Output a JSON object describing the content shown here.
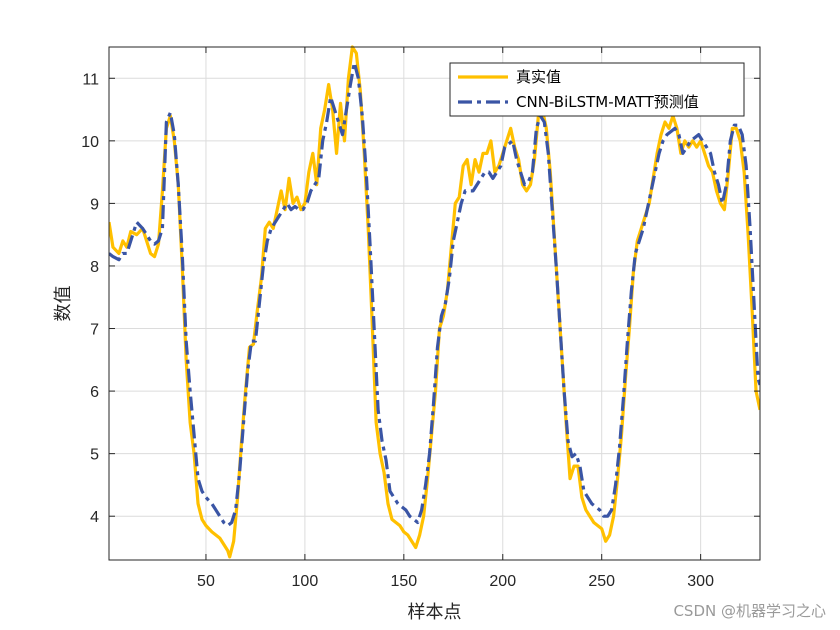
{
  "chart_data": {
    "type": "line",
    "title": "",
    "xlabel": "样本点",
    "ylabel": "数值",
    "xlim": [
      1,
      330
    ],
    "ylim": [
      3.3,
      11.5
    ],
    "xticks": [
      50,
      100,
      150,
      200,
      250,
      300
    ],
    "yticks": [
      4,
      5,
      6,
      7,
      8,
      9,
      10,
      11
    ],
    "grid": true,
    "legend_position": "top-right",
    "series": [
      {
        "name": "真实值",
        "color": "#FFC000",
        "style": "solid",
        "points": [
          [
            1,
            8.7
          ],
          [
            3,
            8.3
          ],
          [
            6,
            8.2
          ],
          [
            8,
            8.4
          ],
          [
            10,
            8.3
          ],
          [
            12,
            8.55
          ],
          [
            15,
            8.5
          ],
          [
            18,
            8.6
          ],
          [
            20,
            8.4
          ],
          [
            22,
            8.2
          ],
          [
            24,
            8.15
          ],
          [
            26,
            8.35
          ],
          [
            28,
            9.2
          ],
          [
            30,
            10.2
          ],
          [
            32,
            10.4
          ],
          [
            34,
            10.0
          ],
          [
            36,
            9.3
          ],
          [
            38,
            8.0
          ],
          [
            40,
            6.5
          ],
          [
            42,
            5.5
          ],
          [
            44,
            5.0
          ],
          [
            46,
            4.2
          ],
          [
            48,
            3.95
          ],
          [
            50,
            3.85
          ],
          [
            53,
            3.75
          ],
          [
            55,
            3.7
          ],
          [
            57,
            3.65
          ],
          [
            59,
            3.55
          ],
          [
            61,
            3.45
          ],
          [
            62,
            3.35
          ],
          [
            64,
            3.6
          ],
          [
            66,
            4.3
          ],
          [
            68,
            5.2
          ],
          [
            70,
            6.0
          ],
          [
            72,
            6.7
          ],
          [
            74,
            6.75
          ],
          [
            76,
            7.3
          ],
          [
            78,
            7.8
          ],
          [
            80,
            8.6
          ],
          [
            82,
            8.7
          ],
          [
            84,
            8.6
          ],
          [
            86,
            8.9
          ],
          [
            88,
            9.2
          ],
          [
            90,
            8.9
          ],
          [
            92,
            9.4
          ],
          [
            94,
            9.0
          ],
          [
            96,
            9.1
          ],
          [
            98,
            8.9
          ],
          [
            100,
            9.0
          ],
          [
            102,
            9.5
          ],
          [
            104,
            9.8
          ],
          [
            106,
            9.3
          ],
          [
            108,
            10.2
          ],
          [
            110,
            10.5
          ],
          [
            112,
            10.9
          ],
          [
            114,
            10.5
          ],
          [
            116,
            9.8
          ],
          [
            118,
            10.6
          ],
          [
            120,
            10.0
          ],
          [
            122,
            11.0
          ],
          [
            124,
            11.5
          ],
          [
            126,
            11.4
          ],
          [
            128,
            10.8
          ],
          [
            130,
            9.8
          ],
          [
            132,
            8.6
          ],
          [
            134,
            7.1
          ],
          [
            136,
            5.5
          ],
          [
            138,
            5.0
          ],
          [
            140,
            4.7
          ],
          [
            142,
            4.2
          ],
          [
            144,
            3.95
          ],
          [
            146,
            3.9
          ],
          [
            148,
            3.85
          ],
          [
            150,
            3.75
          ],
          [
            152,
            3.7
          ],
          [
            154,
            3.6
          ],
          [
            156,
            3.5
          ],
          [
            158,
            3.7
          ],
          [
            160,
            4.0
          ],
          [
            162,
            4.6
          ],
          [
            164,
            5.3
          ],
          [
            166,
            6.0
          ],
          [
            168,
            7.0
          ],
          [
            170,
            7.2
          ],
          [
            172,
            7.6
          ],
          [
            174,
            8.3
          ],
          [
            176,
            9.0
          ],
          [
            178,
            9.1
          ],
          [
            180,
            9.6
          ],
          [
            182,
            9.7
          ],
          [
            184,
            9.3
          ],
          [
            186,
            9.7
          ],
          [
            188,
            9.5
          ],
          [
            190,
            9.8
          ],
          [
            192,
            9.8
          ],
          [
            194,
            10.0
          ],
          [
            196,
            9.5
          ],
          [
            198,
            9.6
          ],
          [
            200,
            9.8
          ],
          [
            202,
            10.0
          ],
          [
            204,
            10.2
          ],
          [
            206,
            9.9
          ],
          [
            208,
            9.7
          ],
          [
            210,
            9.3
          ],
          [
            212,
            9.2
          ],
          [
            214,
            9.3
          ],
          [
            216,
            9.7
          ],
          [
            218,
            10.4
          ],
          [
            220,
            10.5
          ],
          [
            222,
            10.2
          ],
          [
            224,
            9.5
          ],
          [
            226,
            8.5
          ],
          [
            228,
            7.5
          ],
          [
            230,
            6.5
          ],
          [
            232,
            5.5
          ],
          [
            234,
            4.6
          ],
          [
            236,
            4.8
          ],
          [
            238,
            4.8
          ],
          [
            240,
            4.3
          ],
          [
            242,
            4.1
          ],
          [
            244,
            4.0
          ],
          [
            246,
            3.9
          ],
          [
            248,
            3.85
          ],
          [
            250,
            3.8
          ],
          [
            252,
            3.6
          ],
          [
            254,
            3.7
          ],
          [
            256,
            4.0
          ],
          [
            258,
            4.6
          ],
          [
            260,
            5.3
          ],
          [
            262,
            6.2
          ],
          [
            264,
            7.0
          ],
          [
            266,
            7.9
          ],
          [
            268,
            8.4
          ],
          [
            270,
            8.6
          ],
          [
            272,
            8.8
          ],
          [
            274,
            9.0
          ],
          [
            276,
            9.4
          ],
          [
            278,
            9.8
          ],
          [
            280,
            10.1
          ],
          [
            282,
            10.3
          ],
          [
            284,
            10.2
          ],
          [
            286,
            10.4
          ],
          [
            288,
            10.2
          ],
          [
            290,
            9.8
          ],
          [
            292,
            10.0
          ],
          [
            294,
            9.9
          ],
          [
            296,
            10.0
          ],
          [
            298,
            9.9
          ],
          [
            300,
            10.0
          ],
          [
            302,
            9.8
          ],
          [
            304,
            9.6
          ],
          [
            306,
            9.5
          ],
          [
            308,
            9.2
          ],
          [
            310,
            9.0
          ],
          [
            312,
            8.9
          ],
          [
            314,
            9.5
          ],
          [
            316,
            10.2
          ],
          [
            318,
            10.2
          ],
          [
            320,
            10.0
          ],
          [
            322,
            9.5
          ],
          [
            324,
            8.5
          ],
          [
            326,
            7.3
          ],
          [
            328,
            6.0
          ],
          [
            330,
            5.7
          ]
        ]
      },
      {
        "name": "CNN-BiLSTM-MATT预测值",
        "color": "#3A55A5",
        "style": "dashdot",
        "points": [
          [
            1,
            8.2
          ],
          [
            3,
            8.15
          ],
          [
            6,
            8.1
          ],
          [
            8,
            8.2
          ],
          [
            10,
            8.2
          ],
          [
            12,
            8.4
          ],
          [
            15,
            8.7
          ],
          [
            18,
            8.6
          ],
          [
            20,
            8.5
          ],
          [
            22,
            8.4
          ],
          [
            24,
            8.35
          ],
          [
            26,
            8.4
          ],
          [
            28,
            8.6
          ],
          [
            30,
            10.3
          ],
          [
            32,
            10.45
          ],
          [
            34,
            10.1
          ],
          [
            36,
            9.3
          ],
          [
            38,
            8.2
          ],
          [
            40,
            6.8
          ],
          [
            42,
            6.0
          ],
          [
            44,
            5.3
          ],
          [
            46,
            4.6
          ],
          [
            48,
            4.4
          ],
          [
            50,
            4.3
          ],
          [
            53,
            4.2
          ],
          [
            55,
            4.1
          ],
          [
            57,
            4.0
          ],
          [
            59,
            3.9
          ],
          [
            61,
            3.85
          ],
          [
            63,
            3.9
          ],
          [
            65,
            4.1
          ],
          [
            67,
            4.7
          ],
          [
            69,
            5.5
          ],
          [
            71,
            6.3
          ],
          [
            73,
            6.8
          ],
          [
            75,
            6.8
          ],
          [
            77,
            7.4
          ],
          [
            79,
            8.0
          ],
          [
            81,
            8.4
          ],
          [
            83,
            8.6
          ],
          [
            85,
            8.7
          ],
          [
            87,
            8.8
          ],
          [
            89,
            8.9
          ],
          [
            91,
            9.0
          ],
          [
            93,
            8.9
          ],
          [
            95,
            8.95
          ],
          [
            97,
            8.9
          ],
          [
            99,
            8.9
          ],
          [
            101,
            9.0
          ],
          [
            103,
            9.2
          ],
          [
            105,
            9.3
          ],
          [
            107,
            9.4
          ],
          [
            109,
            10.0
          ],
          [
            111,
            10.3
          ],
          [
            113,
            10.7
          ],
          [
            115,
            10.5
          ],
          [
            117,
            10.3
          ],
          [
            119,
            10.1
          ],
          [
            121,
            10.5
          ],
          [
            123,
            10.9
          ],
          [
            125,
            11.25
          ],
          [
            127,
            11.0
          ],
          [
            129,
            10.4
          ],
          [
            131,
            9.5
          ],
          [
            133,
            8.3
          ],
          [
            135,
            7.0
          ],
          [
            137,
            5.7
          ],
          [
            139,
            5.2
          ],
          [
            141,
            4.9
          ],
          [
            143,
            4.4
          ],
          [
            145,
            4.3
          ],
          [
            147,
            4.2
          ],
          [
            149,
            4.15
          ],
          [
            151,
            4.1
          ],
          [
            153,
            4.0
          ],
          [
            155,
            3.95
          ],
          [
            157,
            3.9
          ],
          [
            159,
            4.1
          ],
          [
            161,
            4.5
          ],
          [
            163,
            5.0
          ],
          [
            165,
            5.8
          ],
          [
            167,
            6.7
          ],
          [
            169,
            7.2
          ],
          [
            171,
            7.4
          ],
          [
            173,
            7.8
          ],
          [
            175,
            8.4
          ],
          [
            177,
            8.7
          ],
          [
            179,
            9.0
          ],
          [
            181,
            9.2
          ],
          [
            183,
            9.2
          ],
          [
            185,
            9.2
          ],
          [
            187,
            9.3
          ],
          [
            189,
            9.4
          ],
          [
            191,
            9.5
          ],
          [
            193,
            9.5
          ],
          [
            195,
            9.4
          ],
          [
            197,
            9.5
          ],
          [
            199,
            9.6
          ],
          [
            201,
            9.9
          ],
          [
            203,
            9.95
          ],
          [
            205,
            10.0
          ],
          [
            207,
            9.7
          ],
          [
            209,
            9.5
          ],
          [
            211,
            9.3
          ],
          [
            213,
            9.35
          ],
          [
            215,
            9.5
          ],
          [
            217,
            10.2
          ],
          [
            219,
            10.4
          ],
          [
            221,
            10.3
          ],
          [
            223,
            9.8
          ],
          [
            225,
            8.9
          ],
          [
            227,
            8.0
          ],
          [
            229,
            7.0
          ],
          [
            231,
            6.0
          ],
          [
            233,
            5.2
          ],
          [
            235,
            4.95
          ],
          [
            237,
            5.0
          ],
          [
            239,
            4.8
          ],
          [
            241,
            4.4
          ],
          [
            243,
            4.3
          ],
          [
            245,
            4.2
          ],
          [
            247,
            4.15
          ],
          [
            249,
            4.1
          ],
          [
            251,
            4.0
          ],
          [
            253,
            4.0
          ],
          [
            255,
            4.1
          ],
          [
            257,
            4.5
          ],
          [
            259,
            5.1
          ],
          [
            261,
            5.9
          ],
          [
            263,
            6.8
          ],
          [
            265,
            7.6
          ],
          [
            267,
            8.2
          ],
          [
            269,
            8.4
          ],
          [
            271,
            8.6
          ],
          [
            273,
            8.9
          ],
          [
            275,
            9.2
          ],
          [
            277,
            9.5
          ],
          [
            279,
            9.8
          ],
          [
            281,
            10.0
          ],
          [
            283,
            10.1
          ],
          [
            285,
            10.15
          ],
          [
            287,
            10.2
          ],
          [
            289,
            10.1
          ],
          [
            291,
            9.8
          ],
          [
            293,
            9.9
          ],
          [
            295,
            10.0
          ],
          [
            297,
            10.05
          ],
          [
            299,
            10.1
          ],
          [
            301,
            10.0
          ],
          [
            303,
            9.9
          ],
          [
            305,
            9.8
          ],
          [
            307,
            9.5
          ],
          [
            309,
            9.3
          ],
          [
            311,
            9.0
          ],
          [
            313,
            9.3
          ],
          [
            315,
            10.0
          ],
          [
            317,
            10.25
          ],
          [
            319,
            10.25
          ],
          [
            321,
            10.1
          ],
          [
            323,
            9.6
          ],
          [
            325,
            8.6
          ],
          [
            327,
            7.4
          ],
          [
            329,
            6.2
          ],
          [
            330,
            6.1
          ]
        ]
      }
    ]
  },
  "watermark": "CSDN @机器学习之心"
}
